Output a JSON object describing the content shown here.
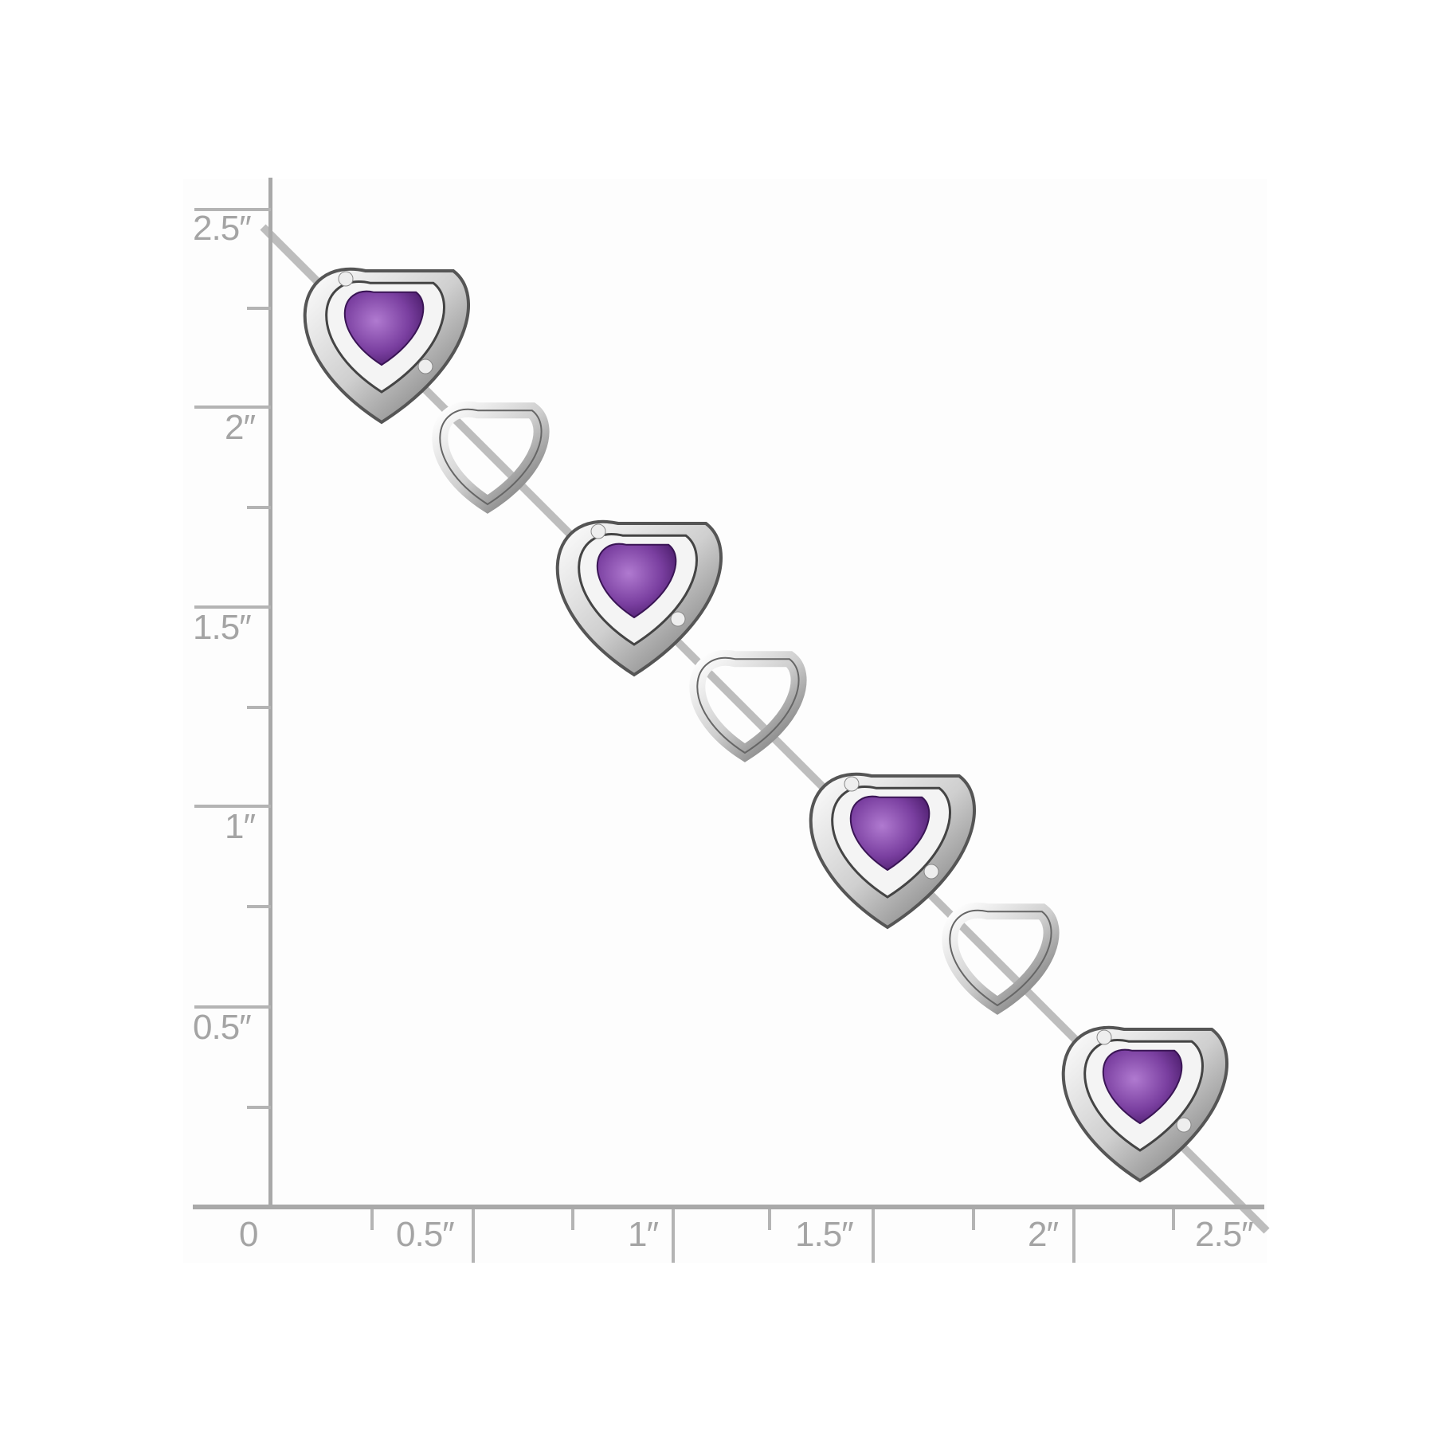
{
  "ruler": {
    "unit": "inch",
    "y_labels": [
      "2.5″",
      "2″",
      "1.5″",
      "1″",
      "0.5″"
    ],
    "x_labels": [
      "0",
      "0.5″",
      "1″",
      "1.5″",
      "2″",
      "2.5″"
    ]
  },
  "product": {
    "gem_color": "#7a3fa0",
    "metal_color": "#d8d8d8",
    "stone_count_visible": 4
  }
}
